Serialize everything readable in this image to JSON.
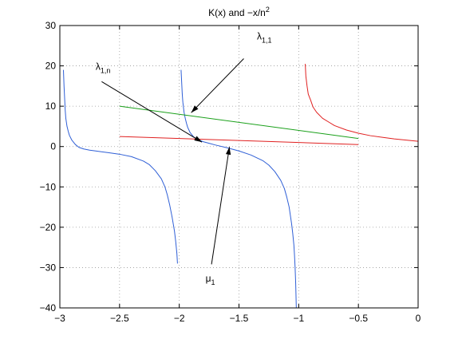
{
  "chart_data": {
    "type": "line",
    "title_main": "K(x) and  −x/n",
    "title_sup": "2",
    "xlim": [
      -3,
      0
    ],
    "ylim": [
      -40,
      30
    ],
    "grid": true,
    "xticks": [
      -3,
      -2.5,
      -2,
      -1.5,
      -1,
      -0.5,
      0
    ],
    "xtick_labels": [
      "−3",
      "−2.5",
      "−2",
      "−1.5",
      "−1",
      "−0.5",
      "0"
    ],
    "yticks": [
      -40,
      -30,
      -20,
      -10,
      0,
      10,
      20,
      30
    ],
    "ytick_labels": [
      "−40",
      "−30",
      "−20",
      "−10",
      "0",
      "10",
      "20",
      "30"
    ],
    "colors": {
      "blue": "#2f5fd6",
      "red": "#e02020",
      "green": "#1aa01a",
      "axis": "#000000"
    },
    "series": [
      {
        "color": "blue",
        "x": [
          -2.97,
          -2.965,
          -2.96,
          -2.955,
          -2.95,
          -2.94,
          -2.93,
          -2.92,
          -2.9,
          -2.87,
          -2.84,
          -2.8,
          -2.75,
          -2.7,
          -2.6,
          -2.5,
          -2.4,
          -2.3,
          -2.25,
          -2.2,
          -2.15,
          -2.12,
          -2.1,
          -2.08,
          -2.06,
          -2.04,
          -2.03,
          -2.02,
          -2.015
        ],
        "y": [
          19,
          15,
          12,
          9,
          7,
          5,
          3.8,
          2.8,
          1.6,
          0.5,
          -0.2,
          -0.6,
          -0.9,
          -1.1,
          -1.5,
          -1.9,
          -2.5,
          -3.6,
          -4.5,
          -6,
          -8,
          -10,
          -12,
          -14.5,
          -17.5,
          -21,
          -23.5,
          -26.5,
          -29
        ]
      },
      {
        "color": "blue",
        "x": [
          -1.985,
          -1.98,
          -1.975,
          -1.97,
          -1.96,
          -1.95,
          -1.94,
          -1.93,
          -1.91,
          -1.88,
          -1.85,
          -1.8,
          -1.75,
          -1.7,
          -1.6,
          -1.5,
          -1.4,
          -1.3,
          -1.25,
          -1.2,
          -1.15,
          -1.12,
          -1.1,
          -1.08,
          -1.06,
          -1.05,
          -1.04,
          -1.035,
          -1.03,
          -1.025,
          -1.02
        ],
        "y": [
          19,
          16,
          13,
          11,
          8.5,
          7,
          5.8,
          4.8,
          3.5,
          2.4,
          1.8,
          1.2,
          0.8,
          0.4,
          -0.3,
          -1.1,
          -2.1,
          -3.5,
          -4.6,
          -6.2,
          -8.4,
          -10.4,
          -12.5,
          -15,
          -19,
          -21.5,
          -24.5,
          -27,
          -30,
          -34,
          -40
        ]
      },
      {
        "color": "red",
        "x": [
          -0.945,
          -0.94,
          -0.93,
          -0.92,
          -0.9,
          -0.88,
          -0.85,
          -0.8,
          -0.75,
          -0.7,
          -0.6,
          -0.5,
          -0.4,
          -0.3,
          -0.2,
          -0.1,
          0
        ],
        "y": [
          20.5,
          17.5,
          15,
          13,
          11.5,
          9.8,
          8.5,
          7,
          6.1,
          5.2,
          4.1,
          3.3,
          2.7,
          2.3,
          1.9,
          1.6,
          1.3
        ]
      },
      {
        "color": "red",
        "x": [
          -2.5,
          -0.5
        ],
        "y": [
          2.5,
          0.5
        ]
      },
      {
        "color": "green",
        "x": [
          -2.5,
          -0.5
        ],
        "y": [
          10,
          2
        ]
      }
    ],
    "annotations": [
      {
        "label_main": "λ",
        "label_sub": "1,1",
        "text_x": -1.35,
        "text_y": 26.5,
        "arrow_from": [
          -1.46,
          21.8
        ],
        "arrow_to": [
          -1.9,
          8.4
        ]
      },
      {
        "label_main": "λ",
        "label_sub": "1,n",
        "text_x": -2.7,
        "text_y": 19.0,
        "arrow_from": [
          -2.65,
          16.1
        ],
        "arrow_to": [
          -1.81,
          1.1
        ]
      },
      {
        "label_main": "μ",
        "label_sub": "1",
        "text_x": -1.78,
        "text_y": -33.5,
        "arrow_from": [
          -1.73,
          -29.2
        ],
        "arrow_to": [
          -1.58,
          -0.1
        ]
      }
    ]
  }
}
